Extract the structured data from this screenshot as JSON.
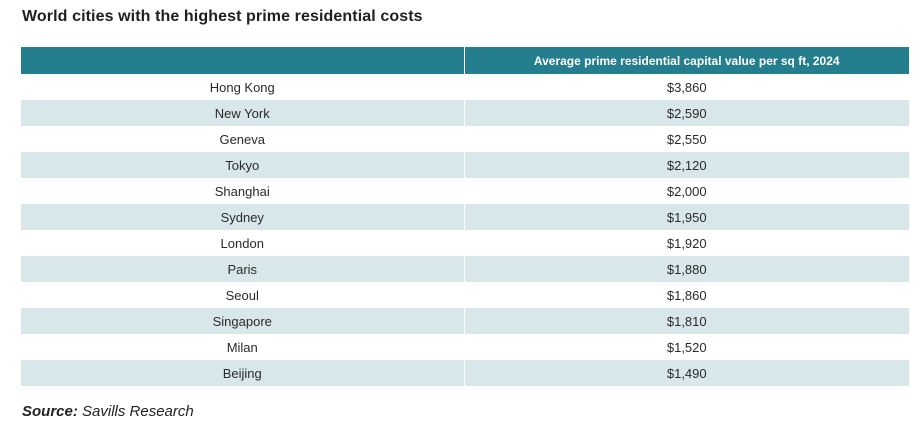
{
  "title": "World cities with the highest prime residential costs",
  "table": {
    "headers": [
      "",
      "Average prime residential capital value per sq ft, 2024"
    ],
    "rows": [
      [
        "Hong Kong",
        "$3,860"
      ],
      [
        "New York",
        "$2,590"
      ],
      [
        "Geneva",
        "$2,550"
      ],
      [
        "Tokyo",
        "$2,120"
      ],
      [
        "Shanghai",
        "$2,000"
      ],
      [
        "Sydney",
        "$1,950"
      ],
      [
        "London",
        "$1,920"
      ],
      [
        "Paris",
        "$1,880"
      ],
      [
        "Seoul",
        "$1,860"
      ],
      [
        "Singapore",
        "$1,810"
      ],
      [
        "Milan",
        "$1,520"
      ],
      [
        "Beijing",
        "$1,490"
      ]
    ]
  },
  "source": {
    "label": "Source:",
    "text": "Savills Research"
  },
  "colors": {
    "header_bg": "#257e8e",
    "stripe_bg": "#d8e7ea"
  },
  "chart_data": {
    "type": "table",
    "title": "World cities with the highest prime residential costs",
    "columns": [
      "",
      "Average prime residential capital value per sq ft, 2024"
    ],
    "categories": [
      "Hong Kong",
      "New York",
      "Geneva",
      "Tokyo",
      "Shanghai",
      "Sydney",
      "London",
      "Paris",
      "Seoul",
      "Singapore",
      "Milan",
      "Beijing"
    ],
    "values": [
      3860,
      2590,
      2550,
      2120,
      2000,
      1950,
      1920,
      1880,
      1860,
      1810,
      1520,
      1490
    ],
    "unit": "$ per sq ft"
  }
}
